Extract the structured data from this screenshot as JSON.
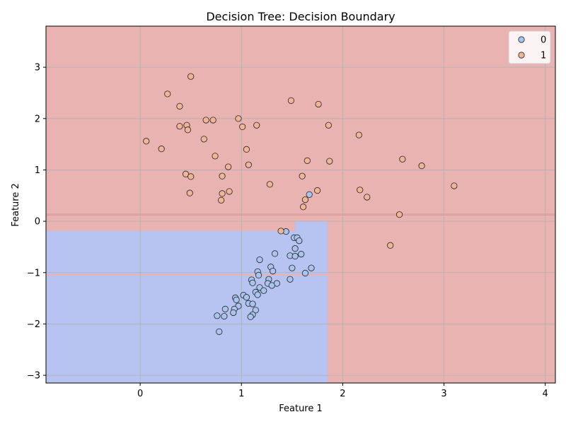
{
  "chart_data": {
    "type": "scatter",
    "title": "Decision Tree: Decision Boundary",
    "xlabel": "Feature 1",
    "ylabel": "Feature 2",
    "xlim": [
      -0.93,
      4.1
    ],
    "ylim": [
      -3.15,
      3.8
    ],
    "xticks": [
      0,
      1,
      2,
      3,
      4
    ],
    "yticks": [
      -3,
      -2,
      -1,
      0,
      1,
      2,
      3
    ],
    "grid": true,
    "legend_position": "top-right",
    "class_colors": {
      "0": "#b7c3f1",
      "1": "#e9b3b2"
    },
    "marker_colors": {
      "0": "#a9c4ee",
      "1": "#f0b497"
    },
    "regions": [
      {
        "class": "0",
        "x": [
          -0.93,
          1.53
        ],
        "y": [
          -3.15,
          -0.19
        ]
      },
      {
        "class": "0",
        "x": [
          1.53,
          1.85
        ],
        "y": [
          -3.15,
          0.0
        ]
      },
      {
        "class": "1",
        "x": [
          -0.93,
          1.85
        ],
        "y": [
          -1.06,
          -1.03
        ]
      }
    ],
    "boundary_lines": [
      {
        "y": 0.12,
        "x": [
          -0.93,
          4.1
        ]
      },
      {
        "y": 0.14,
        "x": [
          -0.93,
          4.1
        ]
      }
    ],
    "series": [
      {
        "name": "0",
        "points": [
          [
            1.67,
            0.52
          ],
          [
            1.44,
            -0.2
          ],
          [
            1.52,
            -0.32
          ],
          [
            1.55,
            -0.32
          ],
          [
            1.57,
            -0.38
          ],
          [
            1.53,
            -0.53
          ],
          [
            1.59,
            -0.64
          ],
          [
            1.48,
            -0.67
          ],
          [
            1.53,
            -0.68
          ],
          [
            1.33,
            -0.63
          ],
          [
            1.18,
            -0.75
          ],
          [
            1.29,
            -0.89
          ],
          [
            1.31,
            -0.97
          ],
          [
            1.5,
            -0.91
          ],
          [
            1.69,
            -0.91
          ],
          [
            1.63,
            -1.01
          ],
          [
            1.16,
            -0.98
          ],
          [
            1.17,
            -1.05
          ],
          [
            1.48,
            -1.13
          ],
          [
            1.27,
            -1.13
          ],
          [
            1.26,
            -1.21
          ],
          [
            1.35,
            -1.21
          ],
          [
            1.1,
            -1.14
          ],
          [
            1.11,
            -1.2
          ],
          [
            1.3,
            -1.25
          ],
          [
            1.18,
            -1.29
          ],
          [
            1.22,
            -1.35
          ],
          [
            1.14,
            -1.38
          ],
          [
            1.16,
            -1.43
          ],
          [
            1.02,
            -1.44
          ],
          [
            1.05,
            -1.48
          ],
          [
            0.94,
            -1.49
          ],
          [
            0.95,
            -1.53
          ],
          [
            1.07,
            -1.6
          ],
          [
            1.11,
            -1.61
          ],
          [
            0.97,
            -1.65
          ],
          [
            0.84,
            -1.71
          ],
          [
            0.93,
            -1.71
          ],
          [
            1.14,
            -1.73
          ],
          [
            0.92,
            -1.78
          ],
          [
            0.76,
            -1.84
          ],
          [
            0.83,
            -1.85
          ],
          [
            1.11,
            -1.82
          ],
          [
            1.09,
            -1.86
          ],
          [
            0.78,
            -2.15
          ]
        ]
      },
      {
        "name": "1",
        "points": [
          [
            0.5,
            2.82
          ],
          [
            0.27,
            2.48
          ],
          [
            1.49,
            2.35
          ],
          [
            0.39,
            2.24
          ],
          [
            1.76,
            2.28
          ],
          [
            0.97,
            2.0
          ],
          [
            0.65,
            1.97
          ],
          [
            0.72,
            1.97
          ],
          [
            0.39,
            1.85
          ],
          [
            0.46,
            1.87
          ],
          [
            1.01,
            1.84
          ],
          [
            1.15,
            1.87
          ],
          [
            1.86,
            1.87
          ],
          [
            0.47,
            1.78
          ],
          [
            2.16,
            1.68
          ],
          [
            0.06,
            1.56
          ],
          [
            0.63,
            1.6
          ],
          [
            0.21,
            1.41
          ],
          [
            1.05,
            1.4
          ],
          [
            0.74,
            1.27
          ],
          [
            2.59,
            1.21
          ],
          [
            1.65,
            1.18
          ],
          [
            1.87,
            1.17
          ],
          [
            1.07,
            1.1
          ],
          [
            2.78,
            1.08
          ],
          [
            0.87,
            1.06
          ],
          [
            0.45,
            0.92
          ],
          [
            0.5,
            0.87
          ],
          [
            0.81,
            0.88
          ],
          [
            1.6,
            0.88
          ],
          [
            1.28,
            0.72
          ],
          [
            3.1,
            0.69
          ],
          [
            2.17,
            0.61
          ],
          [
            1.75,
            0.6
          ],
          [
            0.88,
            0.58
          ],
          [
            0.49,
            0.55
          ],
          [
            0.81,
            0.54
          ],
          [
            2.24,
            0.47
          ],
          [
            0.8,
            0.41
          ],
          [
            1.63,
            0.42
          ],
          [
            1.61,
            0.28
          ],
          [
            2.56,
            0.13
          ],
          [
            1.39,
            -0.19
          ],
          [
            2.47,
            -0.47
          ]
        ]
      }
    ]
  }
}
